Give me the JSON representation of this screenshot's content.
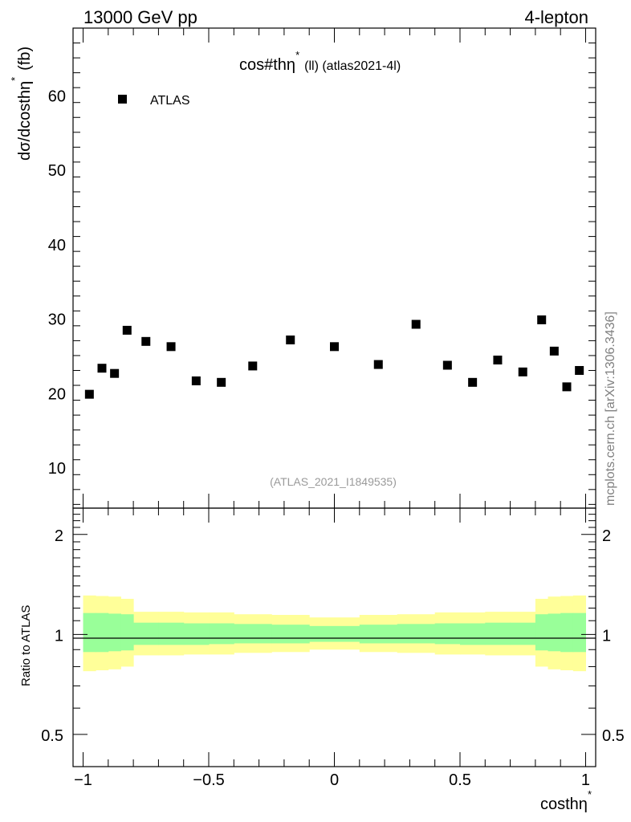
{
  "header": {
    "left": "13000 GeV pp",
    "right": "4-lepton"
  },
  "side_label": "mcplots.cern.ch [arXiv:1306.3436]",
  "chart_data": [
    {
      "type": "scatter",
      "panel": "main",
      "title_main": "cos#thη",
      "title_sup": "*",
      "title_rest": "(ll) (atlas2021-4l)",
      "ylabel": "dσ/dcosthη",
      "ylabel_sup": "*",
      "ylabel_unit": "(fb)",
      "watermark": "(ATLAS_2021_I1849535)",
      "ylim": [
        4.5,
        69
      ],
      "xlim": [
        -1.04,
        1.04
      ],
      "y_ticks": [
        10,
        20,
        30,
        40,
        50,
        60
      ],
      "grid": false,
      "legend_position": "top-left",
      "series": [
        {
          "name": "ATLAS",
          "x": [
            -0.975,
            -0.925,
            -0.875,
            -0.825,
            -0.75,
            -0.65,
            -0.55,
            -0.45,
            -0.325,
            -0.175,
            0.0,
            0.175,
            0.325,
            0.45,
            0.55,
            0.65,
            0.75,
            0.825,
            0.875,
            0.925,
            0.975
          ],
          "y": [
            19.8,
            23.3,
            22.6,
            28.4,
            26.9,
            26.2,
            21.6,
            21.4,
            23.6,
            27.1,
            26.2,
            23.8,
            29.2,
            23.7,
            21.4,
            24.4,
            22.8,
            29.8,
            25.6,
            20.8,
            23.0
          ]
        }
      ]
    },
    {
      "type": "area",
      "panel": "ratio",
      "ylabel": "Ratio to ATLAS",
      "xlabel": "costhη",
      "xlabel_sup": "*",
      "ylim": [
        0.4,
        2.4
      ],
      "y_log": true,
      "y_ticks": [
        0.5,
        1,
        2
      ],
      "x_ticks": [
        -1,
        -0.5,
        0,
        0.5,
        1
      ],
      "xlim": [
        -1.04,
        1.04
      ],
      "bin_edges": [
        -1.0,
        -0.95,
        -0.9,
        -0.85,
        -0.8,
        -0.7,
        -0.6,
        -0.5,
        -0.4,
        -0.25,
        -0.1,
        0.1,
        0.25,
        0.4,
        0.5,
        0.6,
        0.7,
        0.8,
        0.85,
        0.9,
        0.95,
        1.0
      ],
      "bands": [
        {
          "color": "#ffff99",
          "lower": [
            0.775,
            0.78,
            0.785,
            0.8,
            0.865,
            0.865,
            0.87,
            0.87,
            0.88,
            0.885,
            0.9,
            0.885,
            0.88,
            0.87,
            0.87,
            0.865,
            0.865,
            0.8,
            0.785,
            0.78,
            0.775
          ],
          "upper": [
            1.31,
            1.305,
            1.3,
            1.28,
            1.17,
            1.17,
            1.165,
            1.165,
            1.15,
            1.145,
            1.125,
            1.145,
            1.15,
            1.165,
            1.165,
            1.17,
            1.17,
            1.28,
            1.3,
            1.305,
            1.31
          ]
        },
        {
          "color": "#99ff99",
          "lower": [
            0.885,
            0.885,
            0.89,
            0.895,
            0.93,
            0.93,
            0.93,
            0.935,
            0.94,
            0.94,
            0.95,
            0.94,
            0.94,
            0.935,
            0.93,
            0.93,
            0.93,
            0.895,
            0.89,
            0.885,
            0.885
          ],
          "upper": [
            1.16,
            1.16,
            1.155,
            1.15,
            1.085,
            1.085,
            1.08,
            1.08,
            1.075,
            1.07,
            1.06,
            1.07,
            1.075,
            1.08,
            1.08,
            1.085,
            1.085,
            1.15,
            1.155,
            1.16,
            1.16
          ]
        }
      ],
      "reference_line": 1
    }
  ]
}
